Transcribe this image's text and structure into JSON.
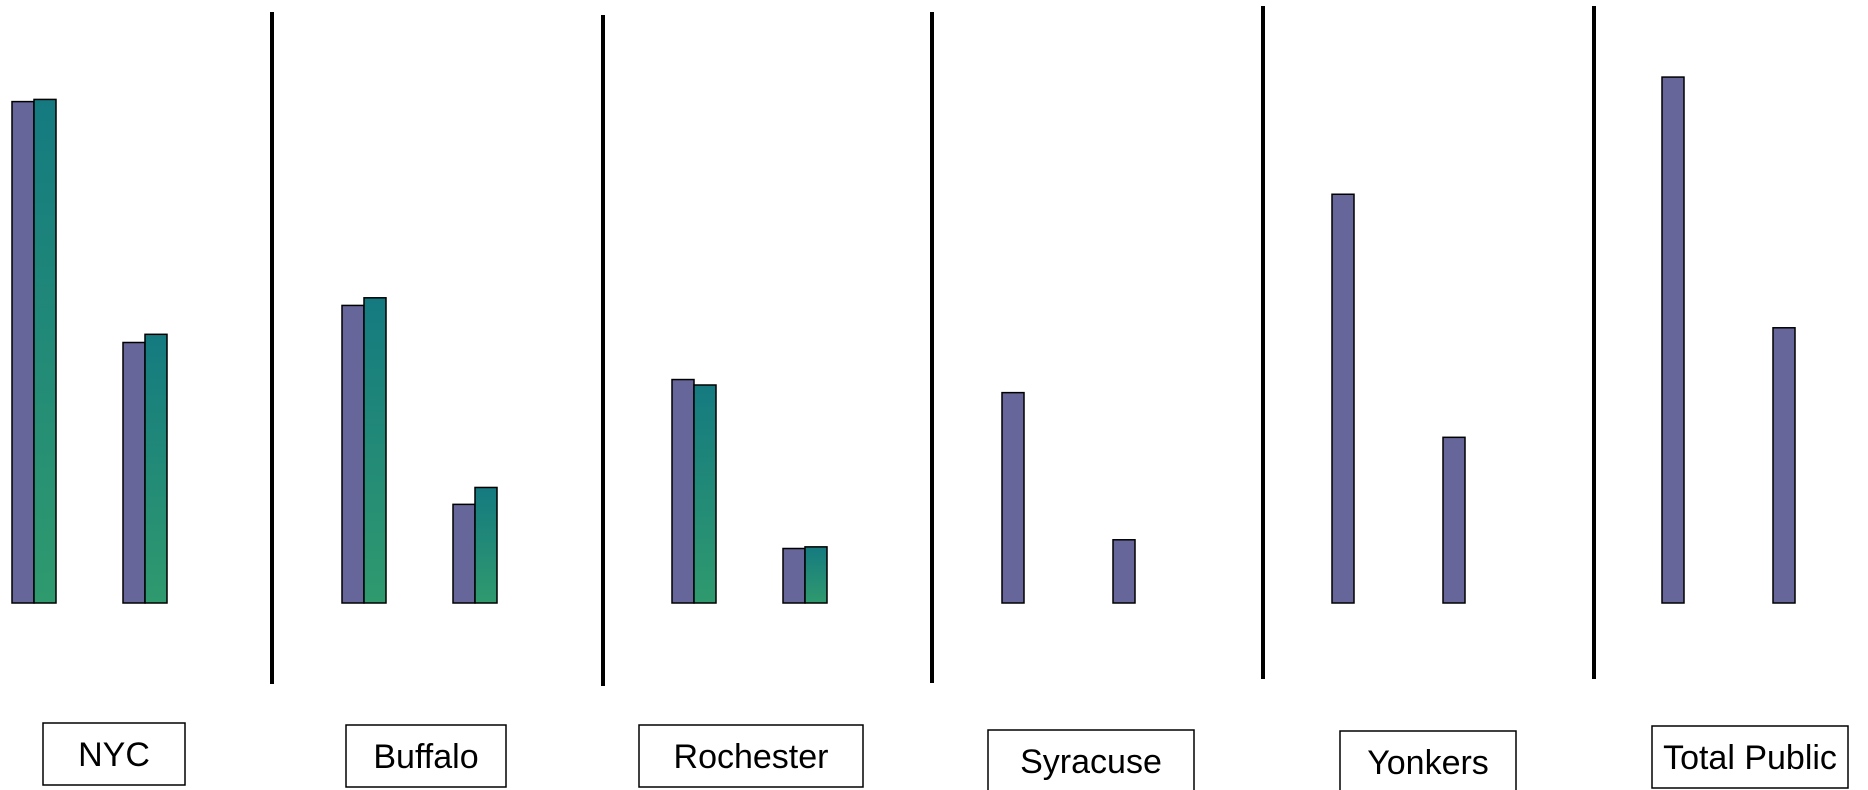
{
  "chart_data": {
    "type": "bar",
    "title": "",
    "xlabel": "",
    "ylabel": "",
    "ylim": [
      0,
      100
    ],
    "colors": {
      "series_1": "#66669a",
      "series_2_top": "#157a80",
      "series_2_bottom": "#2f9a6e"
    },
    "groups": [
      {
        "name": "NYC",
        "pairs": [
          {
            "a": 92,
            "b": 92.4
          },
          {
            "a": 47.8,
            "b": 49.3
          }
        ]
      },
      {
        "name": "Buffalo",
        "pairs": [
          {
            "a": 54.6,
            "b": 56
          },
          {
            "a": 18.1,
            "b": 21.2
          }
        ]
      },
      {
        "name": "Rochester",
        "pairs": [
          {
            "a": 41,
            "b": 40
          },
          {
            "a": 10,
            "b": 10.3
          }
        ]
      },
      {
        "name": "Syracuse",
        "pairs": [
          {
            "a": 38.6,
            "b": null
          },
          {
            "a": 11.6,
            "b": null
          }
        ]
      },
      {
        "name": "Yonkers",
        "pairs": [
          {
            "a": 75,
            "b": null
          },
          {
            "a": 30.4,
            "b": null
          }
        ]
      },
      {
        "name": "Total Public",
        "pairs": [
          {
            "a": 96.5,
            "b": null
          },
          {
            "a": 50.5,
            "b": null
          }
        ]
      }
    ]
  }
}
